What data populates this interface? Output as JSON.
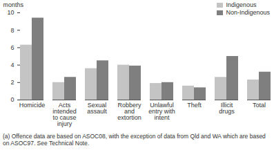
{
  "chart_data": {
    "type": "bar",
    "y_label": "months",
    "caption": "(a) Offence data are based on ASOC08, with the exception of data from Qld and WA which are based on ASOC97. See Technical Note.",
    "categories": [
      "Homicide",
      "Acts intended to cause injury",
      "Sexual assault",
      "Robbery and extortion",
      "Unlawful entry with intent",
      "Theft",
      "Illicit drugs",
      "Total"
    ],
    "series": [
      {
        "name": "Indigenous",
        "color": "#c4c4c4",
        "values": [
          6.3,
          2.0,
          3.6,
          4.0,
          1.9,
          1.6,
          2.6,
          2.3
        ]
      },
      {
        "name": "Non-Indigenous",
        "color": "#7f7f7f",
        "values": [
          9.4,
          2.6,
          4.5,
          3.9,
          2.0,
          1.4,
          5.0,
          3.2
        ]
      }
    ],
    "ylim": [
      0,
      10
    ],
    "yticks": [
      0,
      2,
      4,
      6,
      8,
      10
    ],
    "grid": false,
    "legend": "top-right"
  }
}
